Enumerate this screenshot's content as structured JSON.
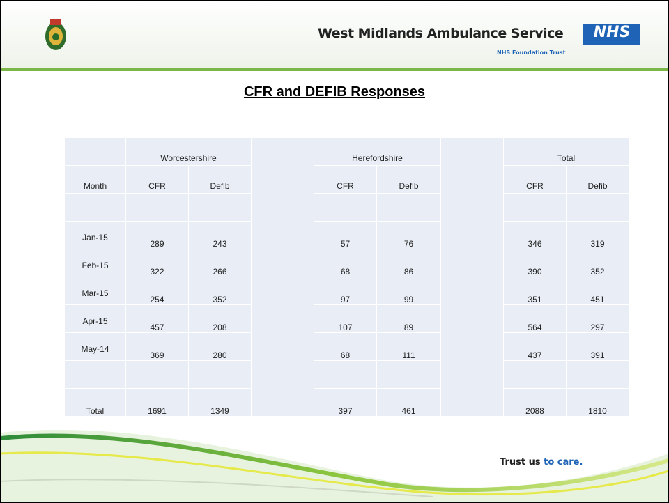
{
  "header": {
    "organization": "West Midlands Ambulance Service",
    "badge": "NHS",
    "subtitle": "NHS Foundation Trust"
  },
  "title": "CFR and DEFIB Responses",
  "table": {
    "groups": [
      "Worcestershire",
      "Herefordshire",
      "Total"
    ],
    "columns": [
      "Month",
      "CFR",
      "Defib",
      "CFR",
      "Defib",
      "CFR",
      "Defib"
    ],
    "rows": [
      [
        "Jan-15",
        289,
        243,
        57,
        76,
        346,
        319
      ],
      [
        "Feb-15",
        322,
        266,
        68,
        86,
        390,
        352
      ],
      [
        "Mar-15",
        254,
        352,
        97,
        99,
        351,
        451
      ],
      [
        "Apr-15",
        457,
        208,
        107,
        89,
        564,
        297
      ],
      [
        "May-14",
        369,
        280,
        68,
        111,
        437,
        391
      ]
    ],
    "total": [
      "Total",
      1691,
      1349,
      397,
      461,
      2088,
      1810
    ]
  },
  "footer": {
    "tagline_start": "Trust us",
    "tagline_end": "to care."
  }
}
